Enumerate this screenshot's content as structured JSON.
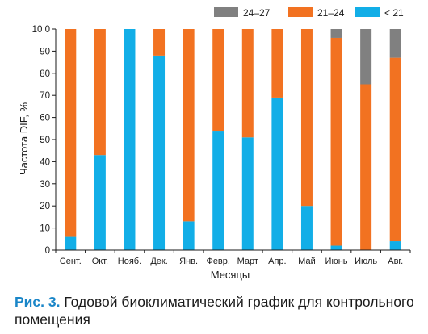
{
  "chart_data": {
    "type": "bar",
    "stacked": true,
    "categories": [
      "Сент.",
      "Окт.",
      "Нояб.",
      "Дек.",
      "Янв.",
      "Февр.",
      "Март",
      "Апр.",
      "Май",
      "Июнь",
      "Июль",
      "Авг."
    ],
    "series": [
      {
        "name": "< 21",
        "color": "#12aee7",
        "values": [
          6,
          43,
          100,
          88,
          13,
          54,
          51,
          69,
          20,
          2,
          0,
          4
        ]
      },
      {
        "name": "21–24",
        "color": "#f27221",
        "values": [
          94,
          57,
          0,
          12,
          87,
          46,
          49,
          31,
          80,
          94,
          75,
          83
        ]
      },
      {
        "name": "24–27",
        "color": "#808080",
        "values": [
          0,
          0,
          0,
          0,
          0,
          0,
          0,
          0,
          0,
          4,
          25,
          13
        ]
      }
    ],
    "legend_order": [
      "24–27",
      "21–24",
      "< 21"
    ],
    "legend_position": "top-right",
    "ylabel": "Частота DIF, %",
    "xlabel": "Месяцы",
    "ylim": [
      0,
      100
    ],
    "yticks": [
      0,
      10,
      20,
      30,
      40,
      50,
      60,
      70,
      80,
      90,
      "10 0"
    ],
    "grid": false
  },
  "caption": {
    "number": "Рис. 3.",
    "text": "Годовой биоклиматический график для контроль­ного помещения"
  }
}
